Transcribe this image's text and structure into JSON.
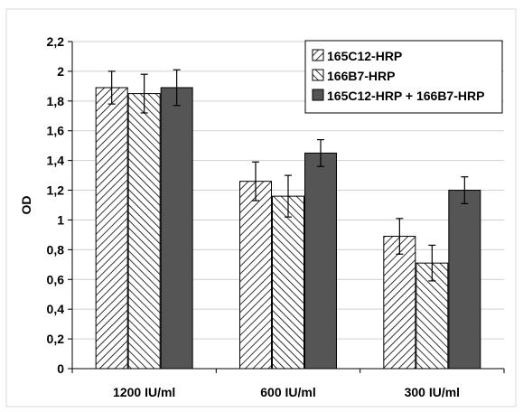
{
  "chart_data": {
    "type": "bar",
    "title": "",
    "xlabel": "",
    "ylabel": "OD",
    "ylim": [
      0,
      2.2
    ],
    "yticks": [
      "0",
      "0,2",
      "0,4",
      "0,6",
      "0,8",
      "1",
      "1,2",
      "1,4",
      "1,6",
      "1,8",
      "2",
      "2,2"
    ],
    "grid": true,
    "legend_position": "top-right",
    "categories": [
      "1200 IU/ml",
      "600 IU/ml",
      "300 IU/ml"
    ],
    "series": [
      {
        "name": "165C12-HRP",
        "pattern": "hatch-forward",
        "values": [
          1.89,
          1.26,
          0.89
        ],
        "errors": [
          0.11,
          0.13,
          0.12
        ]
      },
      {
        "name": "166B7-HRP",
        "pattern": "hatch-backward",
        "values": [
          1.85,
          1.16,
          0.71
        ],
        "errors": [
          0.13,
          0.14,
          0.12
        ]
      },
      {
        "name": "165C12-HRP + 166B7-HRP",
        "pattern": "solid",
        "values": [
          1.89,
          1.45,
          1.2
        ],
        "errors": [
          0.12,
          0.09,
          0.09
        ]
      }
    ],
    "colors": {
      "solid_fill": "#555555",
      "hatch_line": "#000000",
      "grid": "#d0d0d0",
      "frame": "#d8d8d8"
    }
  }
}
